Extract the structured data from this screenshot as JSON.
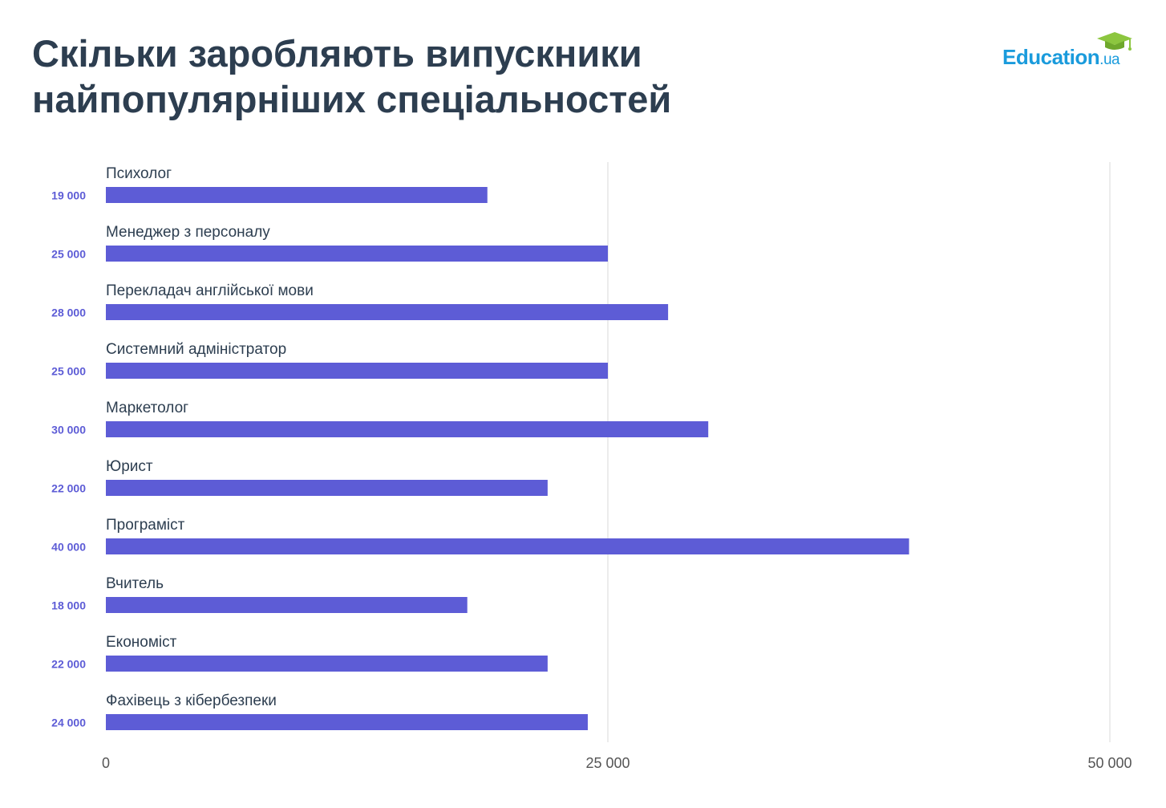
{
  "title_lines": [
    "Скільки заробляють випускники",
    "найпопулярніших спеціальностей"
  ],
  "logo": {
    "main": "Education",
    "suffix": ".ua"
  },
  "colors": {
    "bar": "#5d5cd6",
    "value_label": "#5d5cd6",
    "title": "#2d3e50",
    "category_label": "#2d3e50",
    "grid": "#e6e6e6",
    "tick": "#555555",
    "logo_blue": "#1a9bdc",
    "logo_green": "#8cc63f"
  },
  "chart_data": {
    "type": "bar",
    "orientation": "horizontal",
    "categories": [
      "Психолог",
      "Менеджер з персоналу",
      "Перекладач англійської мови",
      "Системний адміністратор",
      "Маркетолог",
      "Юрист",
      "Програміст",
      "Вчитель",
      "Економіст",
      "Фахівець з кібербезпеки"
    ],
    "values": [
      19000,
      25000,
      28000,
      25000,
      30000,
      22000,
      40000,
      18000,
      22000,
      24000
    ],
    "value_labels": [
      "19 000",
      "25 000",
      "28 000",
      "25 000",
      "30 000",
      "22 000",
      "40 000",
      "18 000",
      "22 000",
      "24 000"
    ],
    "xlim": [
      0,
      50000
    ],
    "x_ticks": [
      0,
      25000,
      50000
    ],
    "x_tick_labels": [
      "0",
      "25 000",
      "50 000"
    ],
    "grid": true
  }
}
